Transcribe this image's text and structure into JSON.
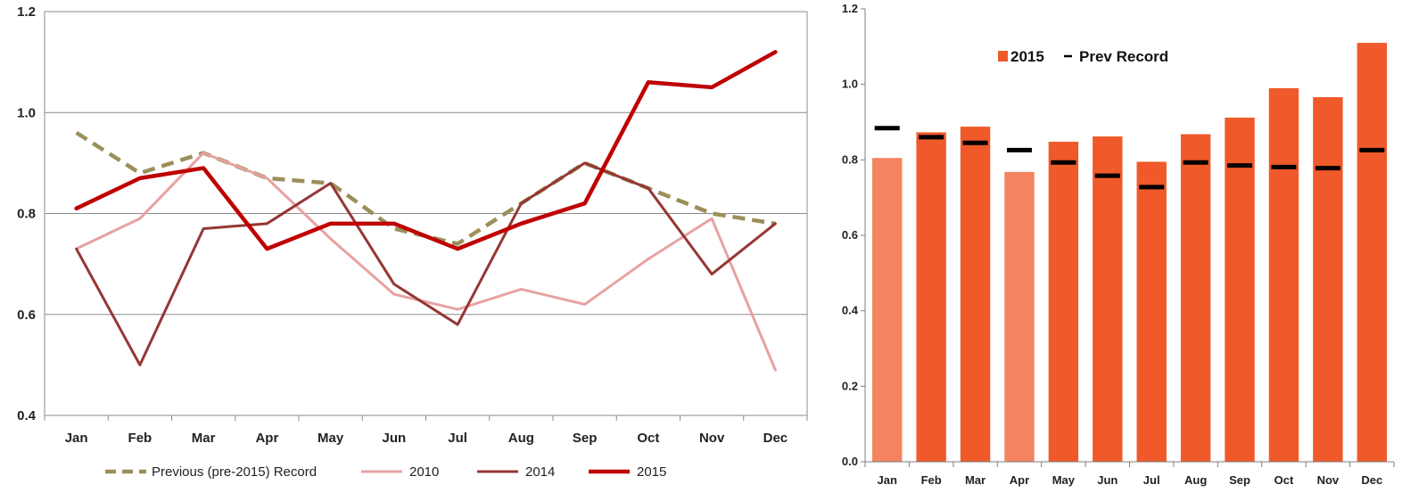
{
  "chart_data": [
    {
      "type": "line",
      "categories": [
        "Jan",
        "Feb",
        "Mar",
        "Apr",
        "May",
        "Jun",
        "Jul",
        "Aug",
        "Sep",
        "Oct",
        "Nov",
        "Dec"
      ],
      "ylim": [
        0.4,
        1.2
      ],
      "yticks": [
        "0.4",
        "0.6",
        "0.8",
        "1.0",
        "1.2"
      ],
      "ytick_values": [
        0.4,
        0.6,
        0.8,
        1.0,
        1.2
      ],
      "grid": true,
      "legend_position": "bottom",
      "series": [
        {
          "name": "Previous (pre-2015) Record",
          "color": "#9b8f5a",
          "style": "dashed",
          "values": [
            0.96,
            0.88,
            0.92,
            0.87,
            0.86,
            0.77,
            0.74,
            0.82,
            0.9,
            0.85,
            0.8,
            0.78
          ]
        },
        {
          "name": "2010",
          "color": "#e8a2a2",
          "style": "solid",
          "values": [
            0.73,
            0.79,
            0.92,
            0.87,
            0.75,
            0.64,
            0.61,
            0.65,
            0.62,
            0.71,
            0.79,
            0.49
          ]
        },
        {
          "name": "2014",
          "color": "#953735",
          "style": "solid",
          "values": [
            0.73,
            0.5,
            0.77,
            0.78,
            0.86,
            0.66,
            0.58,
            0.82,
            0.9,
            0.85,
            0.68,
            0.78
          ]
        },
        {
          "name": "2015",
          "color": "#c00000",
          "style": "solid-thick",
          "values": [
            0.81,
            0.87,
            0.89,
            0.73,
            0.78,
            0.78,
            0.73,
            0.78,
            0.82,
            1.06,
            1.05,
            1.12
          ]
        }
      ]
    },
    {
      "type": "bar",
      "categories": [
        "Jan",
        "Feb",
        "Mar",
        "Apr",
        "May",
        "Jun",
        "Jul",
        "Aug",
        "Sep",
        "Oct",
        "Nov",
        "Dec"
      ],
      "ylim": [
        0.0,
        1.2
      ],
      "yticks": [
        "0.0",
        "0.2",
        "0.4",
        "0.6",
        "0.8",
        "1.0",
        "1.2"
      ],
      "ytick_values": [
        0.0,
        0.2,
        0.4,
        0.6,
        0.8,
        1.0,
        1.2
      ],
      "grid": false,
      "legend_position": "top-left",
      "legend": {
        "bars": "2015",
        "marker": "Prev Record"
      },
      "bar_color": "#f0592a",
      "bar_color_light": "#f4845f",
      "marker_color": "#000000",
      "values": [
        0.805,
        0.873,
        0.888,
        0.768,
        0.848,
        0.862,
        0.795,
        0.868,
        0.912,
        0.99,
        0.966,
        1.11
      ],
      "prev_record": [
        0.884,
        0.86,
        0.845,
        0.826,
        0.793,
        0.758,
        0.728,
        0.793,
        0.785,
        0.781,
        0.778,
        0.826
      ],
      "light_bars": [
        "Jan",
        "Apr"
      ]
    }
  ]
}
